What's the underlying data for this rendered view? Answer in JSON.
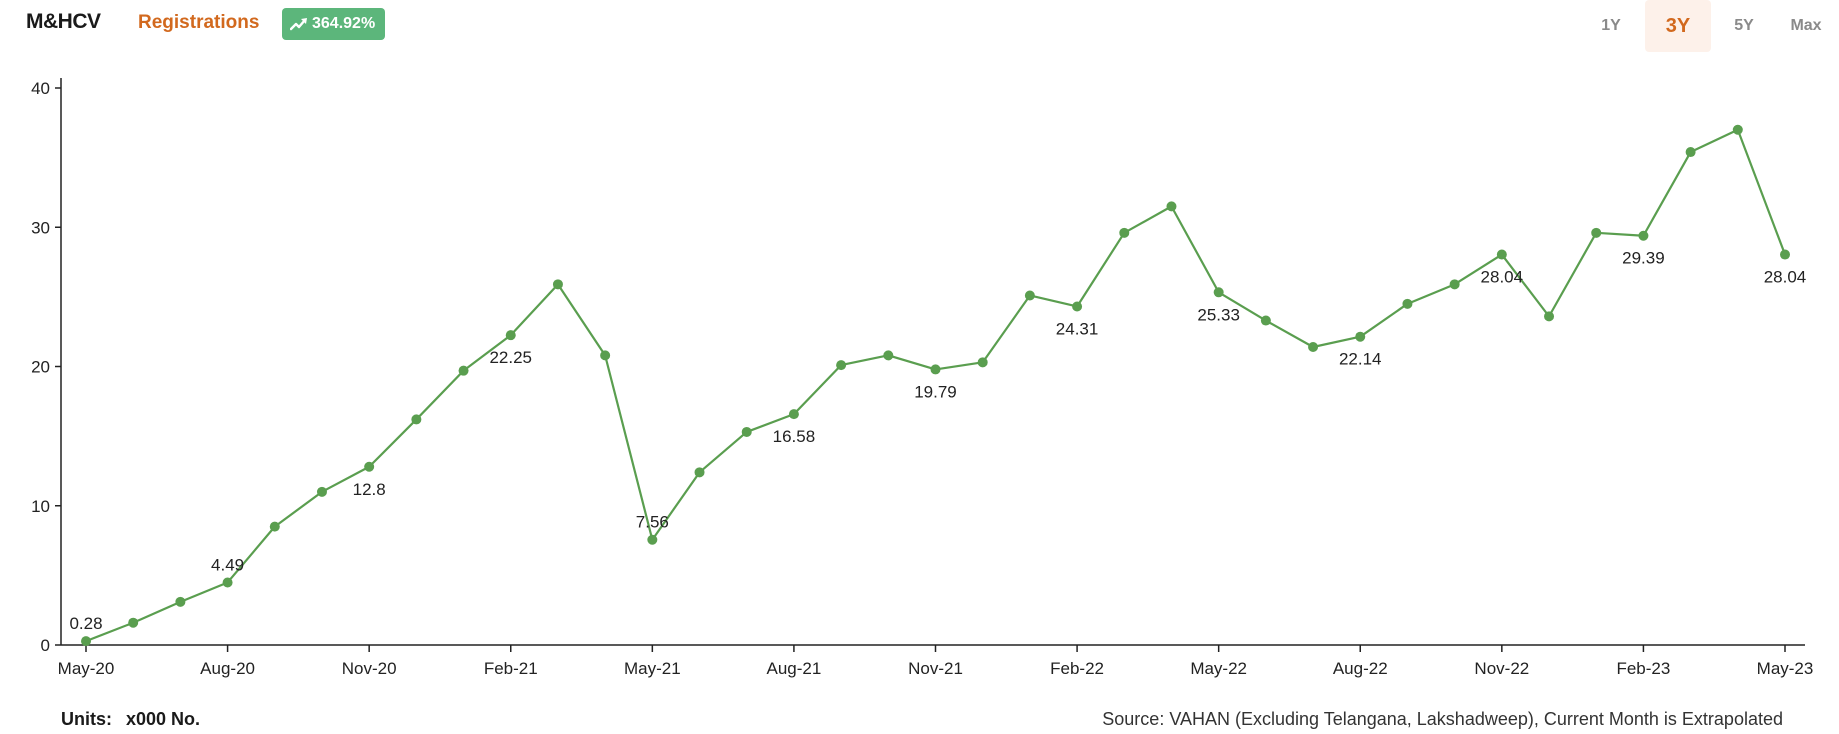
{
  "header": {
    "title": "M&HCV",
    "metric": "Registrations",
    "change": "364.92%",
    "change_icon": "trending-up-icon",
    "ranges": [
      "1Y",
      "3Y",
      "5Y",
      "Max"
    ],
    "active_range": "3Y"
  },
  "footer": {
    "units_label": "Units:",
    "units_value": "x000 No.",
    "source": "Source: VAHAN (Excluding Telangana, Lakshadweep), Current Month is Extrapolated"
  },
  "colors": {
    "line": "#5a9e4f",
    "accent": "#d2691e",
    "badge": "#5cb67b"
  },
  "chart_data": {
    "type": "line",
    "x": [
      "May-20",
      "Jun-20",
      "Jul-20",
      "Aug-20",
      "Sep-20",
      "Oct-20",
      "Nov-20",
      "Dec-20",
      "Jan-21",
      "Feb-21",
      "Mar-21",
      "Apr-21",
      "May-21",
      "Jun-21",
      "Jul-21",
      "Aug-21",
      "Sep-21",
      "Oct-21",
      "Nov-21",
      "Dec-21",
      "Jan-22",
      "Feb-22",
      "Mar-22",
      "Apr-22",
      "May-22",
      "Jun-22",
      "Jul-22",
      "Aug-22",
      "Sep-22",
      "Oct-22",
      "Nov-22",
      "Dec-22",
      "Jan-23",
      "Feb-23",
      "Mar-23",
      "Apr-23",
      "May-23"
    ],
    "values": [
      0.28,
      1.6,
      3.1,
      4.49,
      8.5,
      11.0,
      12.8,
      16.2,
      19.7,
      22.25,
      25.9,
      20.8,
      7.56,
      12.4,
      15.3,
      16.58,
      20.1,
      20.8,
      19.79,
      20.3,
      25.1,
      24.31,
      29.6,
      31.5,
      25.33,
      23.3,
      21.4,
      22.14,
      24.5,
      25.9,
      28.04,
      23.6,
      29.6,
      29.39,
      35.4,
      37.0,
      28.04
    ],
    "point_labels": [
      {
        "index": 0,
        "text": "0.28",
        "pos": "above"
      },
      {
        "index": 3,
        "text": "4.49",
        "pos": "above"
      },
      {
        "index": 6,
        "text": "12.8",
        "pos": "below"
      },
      {
        "index": 9,
        "text": "22.25",
        "pos": "below"
      },
      {
        "index": 12,
        "text": "7.56",
        "pos": "above"
      },
      {
        "index": 15,
        "text": "16.58",
        "pos": "below"
      },
      {
        "index": 18,
        "text": "19.79",
        "pos": "below"
      },
      {
        "index": 21,
        "text": "24.31",
        "pos": "below"
      },
      {
        "index": 24,
        "text": "25.33",
        "pos": "below"
      },
      {
        "index": 27,
        "text": "22.14",
        "pos": "below"
      },
      {
        "index": 30,
        "text": "28.04",
        "pos": "below"
      },
      {
        "index": 33,
        "text": "29.39",
        "pos": "below"
      },
      {
        "index": 36,
        "text": "28.04",
        "pos": "below"
      }
    ],
    "x_tick_labels": [
      "May-20",
      "Aug-20",
      "Nov-20",
      "Feb-21",
      "May-21",
      "Aug-21",
      "Nov-21",
      "Feb-22",
      "May-22",
      "Aug-22",
      "Nov-22",
      "Feb-23",
      "May-23"
    ],
    "y_ticks": [
      0,
      10,
      20,
      30,
      40
    ],
    "ylim": [
      0,
      40
    ],
    "grid": false,
    "legend": "none"
  }
}
